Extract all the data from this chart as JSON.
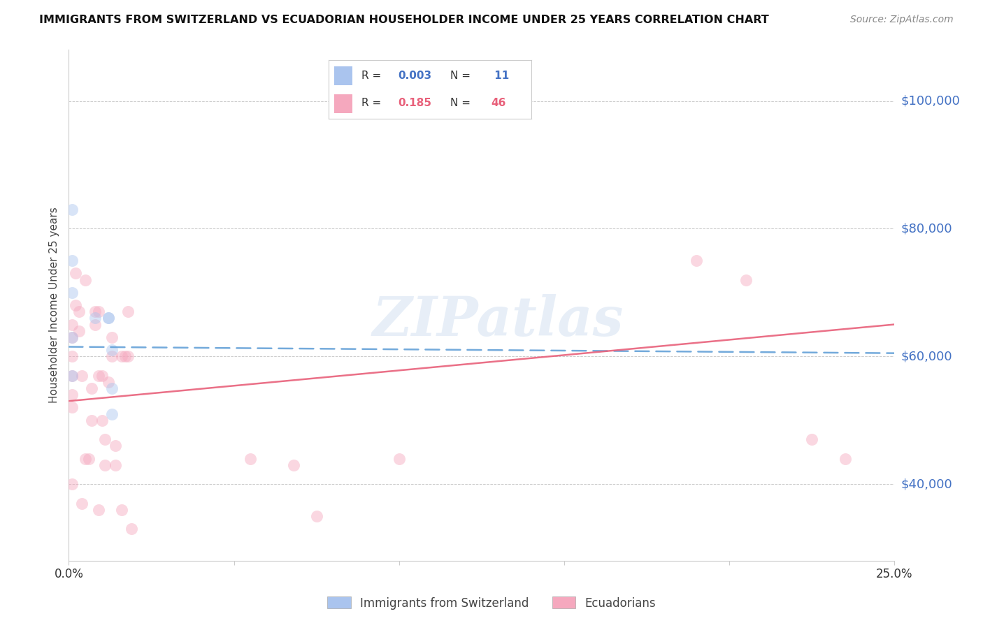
{
  "title": "IMMIGRANTS FROM SWITZERLAND VS ECUADORIAN HOUSEHOLDER INCOME UNDER 25 YEARS CORRELATION CHART",
  "source": "Source: ZipAtlas.com",
  "ylabel": "Householder Income Under 25 years",
  "y_tick_labels": [
    "$40,000",
    "$60,000",
    "$80,000",
    "$100,000"
  ],
  "y_tick_values": [
    40000,
    60000,
    80000,
    100000
  ],
  "R_swiss": "0.003",
  "N_swiss": "11",
  "R_ecuador": "0.185",
  "N_ecuador": "46",
  "swiss_color": "#aac4ee",
  "ecuador_color": "#f5a8be",
  "swiss_line_color": "#5b9bd5",
  "ecuador_line_color": "#e8607a",
  "bg_color": "#ffffff",
  "grid_color": "#cccccc",
  "blue_label_color": "#4472c4",
  "xlim": [
    0.0,
    0.25
  ],
  "ylim": [
    28000,
    108000
  ],
  "swiss_trend_x": [
    0.0,
    0.25
  ],
  "swiss_trend_y": [
    61500,
    60500
  ],
  "ecuador_trend_x": [
    0.0,
    0.25
  ],
  "ecuador_trend_y": [
    53000,
    65000
  ],
  "swiss_x": [
    0.001,
    0.001,
    0.001,
    0.001,
    0.001,
    0.008,
    0.012,
    0.012,
    0.013,
    0.013,
    0.013
  ],
  "swiss_y": [
    83000,
    75000,
    70000,
    63000,
    57000,
    66000,
    66000,
    66000,
    55000,
    51000,
    61000
  ],
  "ecuador_x": [
    0.001,
    0.001,
    0.001,
    0.001,
    0.001,
    0.001,
    0.001,
    0.002,
    0.002,
    0.003,
    0.003,
    0.004,
    0.004,
    0.005,
    0.005,
    0.006,
    0.007,
    0.007,
    0.008,
    0.008,
    0.009,
    0.009,
    0.009,
    0.01,
    0.01,
    0.011,
    0.011,
    0.012,
    0.013,
    0.013,
    0.014,
    0.014,
    0.016,
    0.016,
    0.017,
    0.018,
    0.018,
    0.019,
    0.055,
    0.068,
    0.075,
    0.1,
    0.19,
    0.205,
    0.225,
    0.235
  ],
  "ecuador_y": [
    60000,
    57000,
    54000,
    52000,
    65000,
    63000,
    40000,
    73000,
    68000,
    67000,
    64000,
    57000,
    37000,
    72000,
    44000,
    44000,
    55000,
    50000,
    67000,
    65000,
    67000,
    57000,
    36000,
    57000,
    50000,
    47000,
    43000,
    56000,
    63000,
    60000,
    46000,
    43000,
    60000,
    36000,
    60000,
    67000,
    60000,
    33000,
    44000,
    43000,
    35000,
    44000,
    75000,
    72000,
    47000,
    44000
  ],
  "watermark": "ZIPatlas",
  "dot_size": 150,
  "dot_alpha": 0.45,
  "line_width": 1.8,
  "legend_swiss_label": "Immigrants from Switzerland",
  "legend_ecuador_label": "Ecuadorians"
}
